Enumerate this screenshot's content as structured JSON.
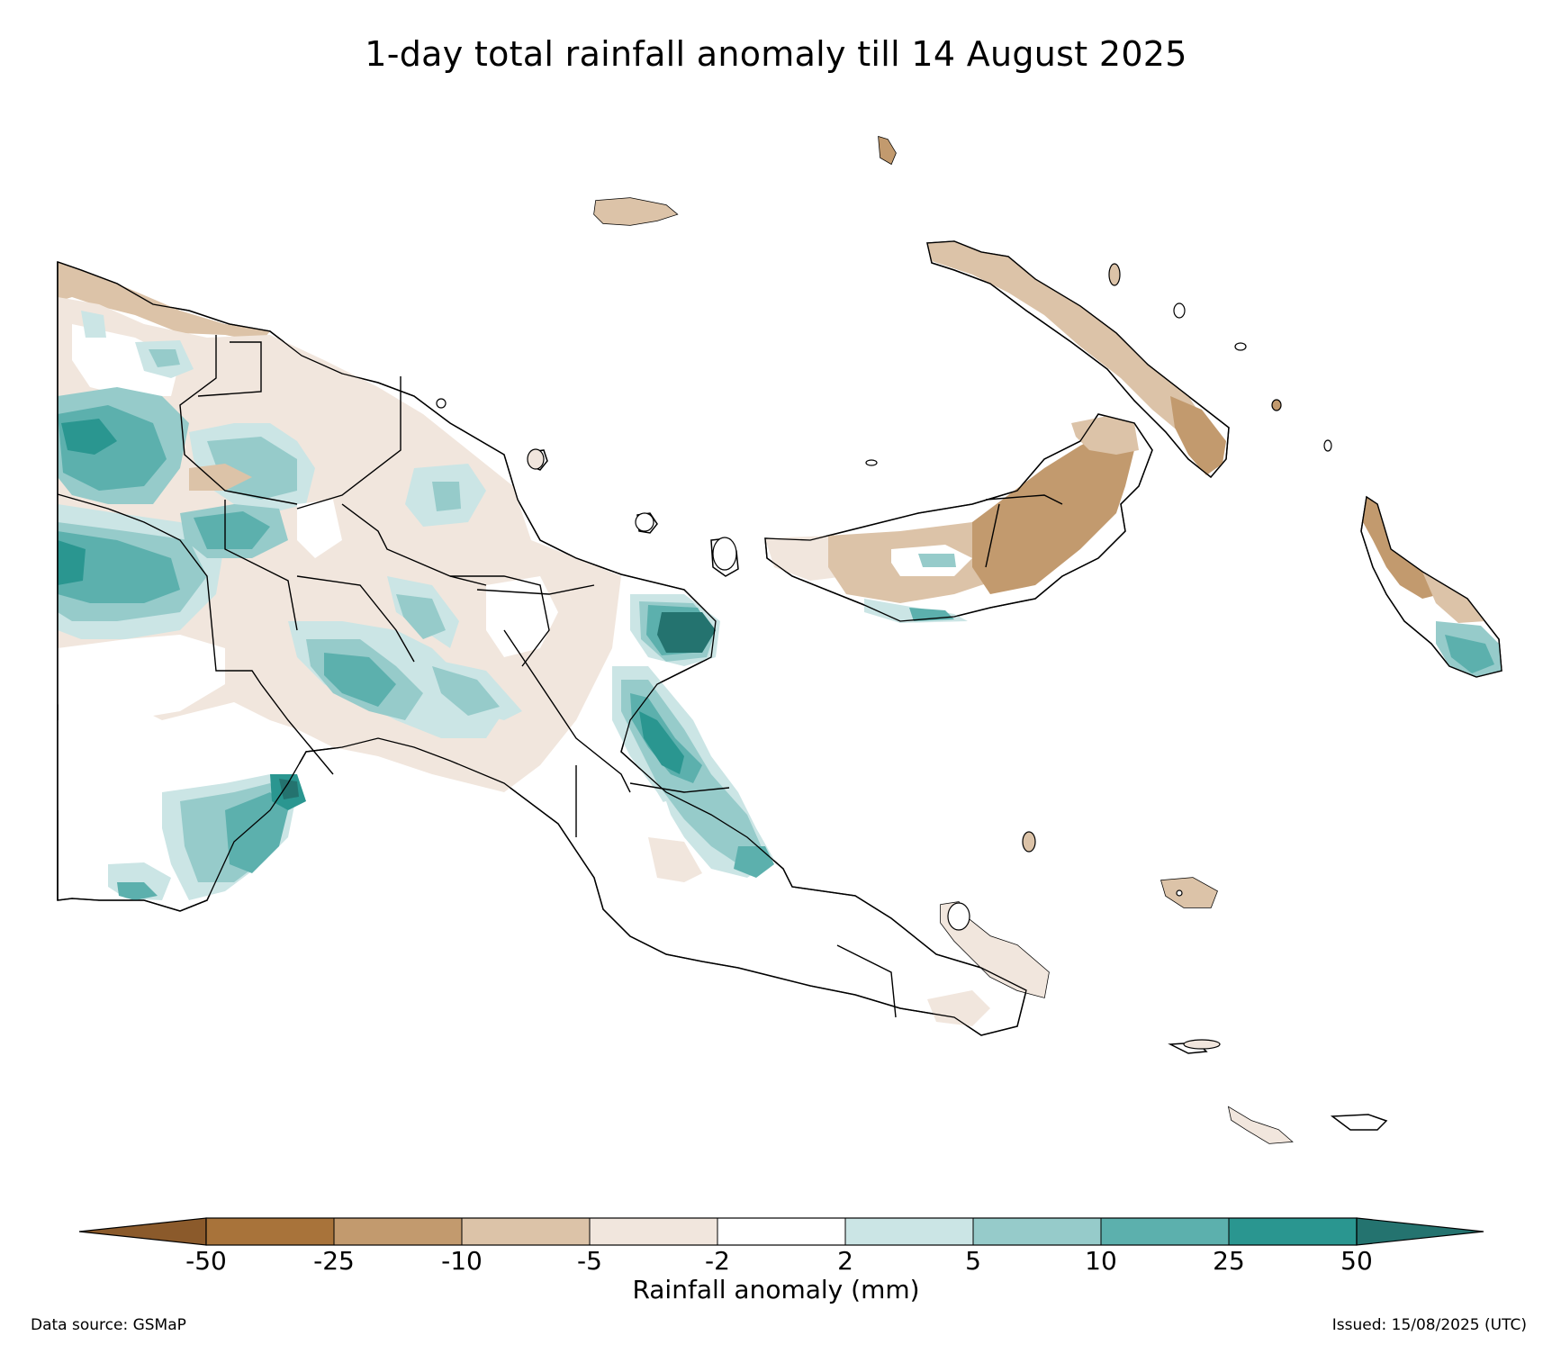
{
  "title": "1-day total rainfall anomaly till 14 August 2025",
  "colorbar": {
    "label": "Rainfall anomaly (mm)",
    "ticks": [
      "-50",
      "-25",
      "-10",
      "-5",
      "-2",
      "2",
      "5",
      "10",
      "25",
      "50"
    ],
    "colors": {
      "below_-50": "#8b5a2b",
      "-50_-25": "#a8733a",
      "-25_-10": "#c29a6e",
      "-10_-5": "#dcc3a8",
      "-5_-2": "#f1e6dd",
      "-2_2": "#ffffff",
      "2_5": "#cbe5e5",
      "5_10": "#96cbca",
      "10_25": "#5cb0ad",
      "25_50": "#2a9690",
      "above_50": "#24736f"
    }
  },
  "footer": {
    "source": "Data source: GSMaP",
    "issued": "Issued: 15/08/2025 (UTC)"
  }
}
